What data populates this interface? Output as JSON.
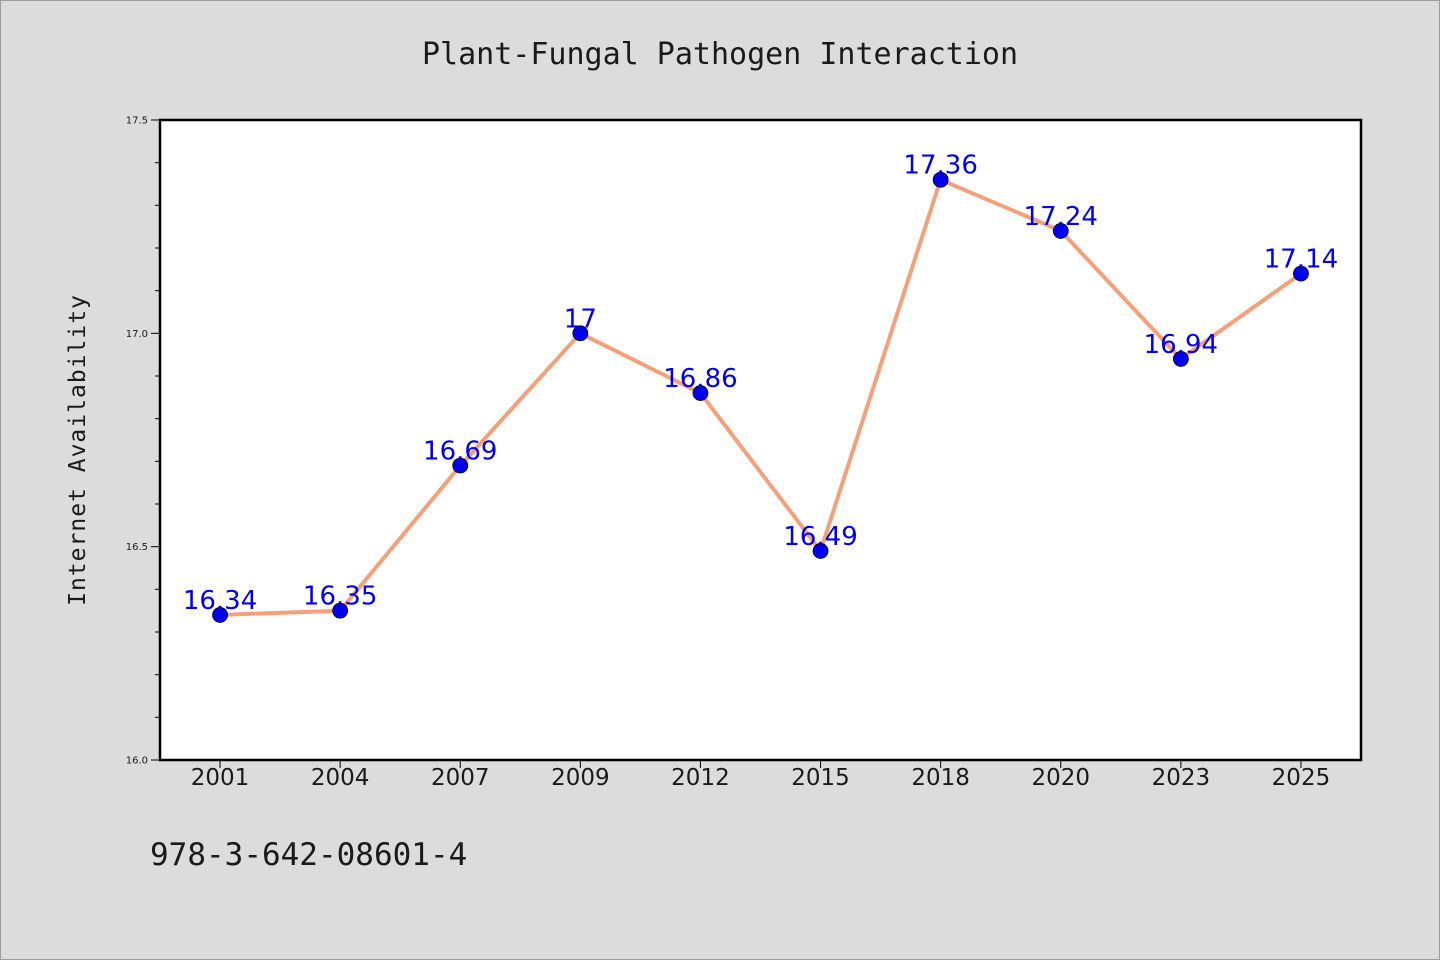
{
  "chart_data": {
    "type": "line",
    "title": "Plant-Fungal Pathogen Interaction",
    "xlabel": "",
    "ylabel": "Internet Availability",
    "categories": [
      "2001",
      "2004",
      "2007",
      "2009",
      "2012",
      "2015",
      "2018",
      "2020",
      "2023",
      "2025"
    ],
    "series": [
      {
        "values": [
          16.34,
          16.35,
          16.69,
          17,
          16.86,
          16.49,
          17.36,
          17.24,
          16.94,
          17.14
        ],
        "labels": [
          "16.34",
          "16.35",
          "16.69",
          "17",
          "16.86",
          "16.49",
          "17.36",
          "17.24",
          "16.94",
          "17.14"
        ],
        "line_color": "#f4a07a",
        "marker_color": "#0000ee"
      }
    ],
    "ylim": [
      16.0,
      17.5
    ],
    "yticks": [
      "16.0",
      "16.5",
      "17.0",
      "17.5"
    ],
    "grid": false,
    "legend": "none",
    "footnote": "978-3-642-08601-4",
    "colors": {
      "background": "#dcdcdc",
      "plot_area": "#ffffff",
      "line": "#f4a07a",
      "marker": "#0000ee",
      "label": "#0000ee"
    }
  }
}
